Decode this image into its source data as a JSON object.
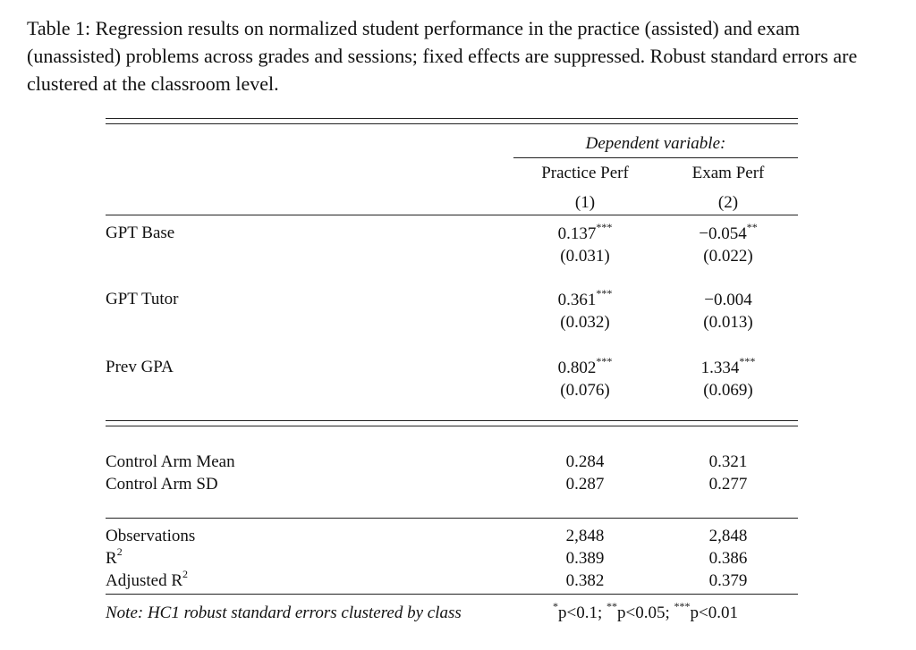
{
  "caption": "Table 1: Regression results on normalized student performance in the practice (assisted) and exam (unassisted) problems across grades and sessions; fixed effects are suppressed. Robust standard errors are clustered at the classroom level.",
  "header": {
    "dependent_variable": "Dependent variable:",
    "col1_name": "Practice Perf",
    "col2_name": "Exam Perf",
    "col1_num": "(1)",
    "col2_num": "(2)"
  },
  "coefficients": [
    {
      "label": "GPT Base",
      "c1": "0.137",
      "c1_stars": "***",
      "c1_se": "(0.031)",
      "c2": "−0.054",
      "c2_stars": "**",
      "c2_se": "(0.022)"
    },
    {
      "label": "GPT Tutor",
      "c1": "0.361",
      "c1_stars": "***",
      "c1_se": "(0.032)",
      "c2": "−0.004",
      "c2_stars": "",
      "c2_se": "(0.013)"
    },
    {
      "label": "Prev GPA",
      "c1": "0.802",
      "c1_stars": "***",
      "c1_se": "(0.076)",
      "c2": "1.334",
      "c2_stars": "***",
      "c2_se": "(0.069)"
    }
  ],
  "control": [
    {
      "label": "Control Arm Mean",
      "c1": "0.284",
      "c2": "0.321"
    },
    {
      "label": "Control Arm SD",
      "c1": "0.287",
      "c2": "0.277"
    }
  ],
  "stats": [
    {
      "label": "Observations",
      "c1": "2,848",
      "c2": "2,848"
    },
    {
      "label": "R",
      "sup": "2",
      "c1": "0.389",
      "c2": "0.386"
    },
    {
      "label": "Adjusted R",
      "sup": "2",
      "c1": "0.382",
      "c2": "0.379"
    }
  ],
  "note": {
    "label": "Note: HC1 robust standard errors clustered by class",
    "s1": "*",
    "t1": "p<0.1; ",
    "s2": "**",
    "t2": "p<0.05; ",
    "s3": "***",
    "t3": "p<0.01"
  }
}
